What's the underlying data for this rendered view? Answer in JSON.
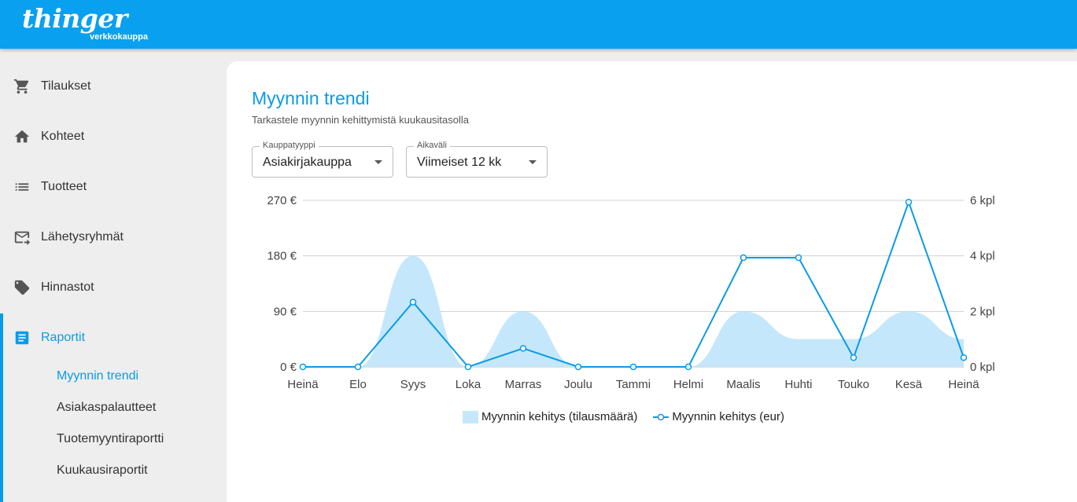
{
  "header": {
    "brand": "thinger",
    "brand_sub": "verkkokauppa",
    "color": "#0aa0f0"
  },
  "sidebar": {
    "items": [
      {
        "label": "Tilaukset",
        "icon": "cart-icon"
      },
      {
        "label": "Kohteet",
        "icon": "home-icon"
      },
      {
        "label": "Tuotteet",
        "icon": "list-icon"
      },
      {
        "label": "Lähetysryhmät",
        "icon": "mail-forward-icon"
      },
      {
        "label": "Hinnastot",
        "icon": "tag-icon"
      },
      {
        "label": "Raportit",
        "icon": "report-icon",
        "active": true
      }
    ],
    "subitems": [
      {
        "label": "Myynnin trendi",
        "active": true
      },
      {
        "label": "Asiakaspalautteet"
      },
      {
        "label": "Tuotemyyntiraportti"
      },
      {
        "label": "Kuukausiraportit"
      }
    ]
  },
  "page": {
    "title": "Myynnin trendi",
    "subtitle": "Tarkastele myynnin kehittymistä kuukausitasolla",
    "filters": {
      "store_type": {
        "label": "Kauppatyyppi",
        "value": "Asiakirjakauppa"
      },
      "period": {
        "label": "Aikaväli",
        "value": "Viimeiset 12 kk"
      }
    }
  },
  "chart_data": {
    "type": "line",
    "categories": [
      "Heinä",
      "Elo",
      "Syys",
      "Loka",
      "Marras",
      "Joulu",
      "Tammi",
      "Helmi",
      "Maalis",
      "Huhti",
      "Touko",
      "Kesä",
      "Heinä"
    ],
    "y_left": {
      "ticks": [
        "0 €",
        "90 €",
        "180 €",
        "270 €"
      ],
      "range": [
        0,
        270
      ]
    },
    "y_right": {
      "ticks": [
        "0 kpl",
        "2 kpl",
        "4 kpl",
        "6 kpl"
      ],
      "range": [
        0,
        6
      ]
    },
    "series": [
      {
        "name": "Myynnin kehitys (tilausmäärä)",
        "type": "area",
        "axis": "right",
        "color": "#c5e7fb",
        "values": [
          0,
          0,
          4,
          0,
          2,
          0,
          0,
          0,
          2,
          1,
          1,
          2,
          1
        ]
      },
      {
        "name": "Myynnin kehitys (eur)",
        "type": "line",
        "axis": "left",
        "color": "#0a9be8",
        "values": [
          0,
          0,
          105,
          0,
          30,
          0,
          0,
          0,
          177,
          177,
          15,
          267,
          15
        ]
      }
    ],
    "legend_position": "bottom",
    "grid": true
  }
}
